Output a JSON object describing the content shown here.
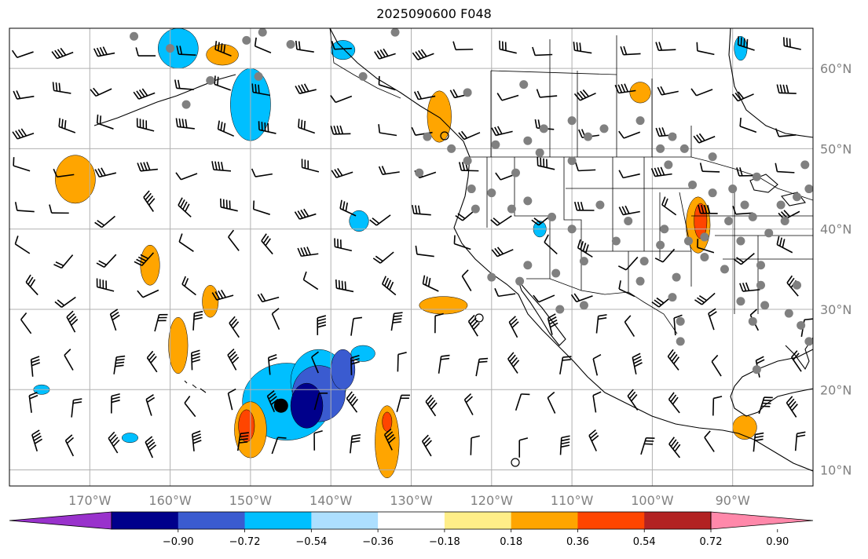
{
  "title": "2025090600 F048",
  "map": {
    "lon_range": [
      -180,
      -80
    ],
    "lat_range": [
      8,
      65
    ],
    "lat_ticks": [
      {
        "lat": 60,
        "label": "60°N"
      },
      {
        "lat": 50,
        "label": "50°N"
      },
      {
        "lat": 40,
        "label": "40°N"
      },
      {
        "lat": 30,
        "label": "30°N"
      },
      {
        "lat": 20,
        "label": "20°N"
      },
      {
        "lat": 10,
        "label": "10°N"
      }
    ],
    "lon_ticks": [
      {
        "lon": -170,
        "label": "170°W"
      },
      {
        "lon": -160,
        "label": "160°W"
      },
      {
        "lon": -150,
        "label": "150°W"
      },
      {
        "lon": -140,
        "label": "140°W"
      },
      {
        "lon": -130,
        "label": "130°W"
      },
      {
        "lon": -120,
        "label": "120°W"
      },
      {
        "lon": -110,
        "label": "110°W"
      },
      {
        "lon": -100,
        "label": "100°W"
      },
      {
        "lon": -90,
        "label": "90°W"
      }
    ],
    "grid_lons": [
      -180,
      -170,
      -160,
      -150,
      -140,
      -130,
      -120,
      -110,
      -100,
      -90,
      -80
    ],
    "grid_lats": [
      10,
      20,
      30,
      40,
      50,
      60
    ],
    "colors": {
      "grid": "#b0b0b0",
      "coast": "#000000",
      "station_dot": "#808080",
      "storm_dot": "#000000"
    }
  },
  "colorbar": {
    "colors": [
      "#9932CC",
      "#00008B",
      "#3A5BD0",
      "#00BFFF",
      "#ADDFFF",
      "#FFFFFF",
      "#FFEE88",
      "#FFA500",
      "#FF4500",
      "#B22222",
      "#FF88AA"
    ],
    "labels": [
      "−0.90",
      "−0.72",
      "−0.54",
      "−0.36",
      "−0.18",
      "0.18",
      "0.36",
      "0.54",
      "0.72",
      "0.90"
    ]
  },
  "anomaly_blobs": [
    {
      "lon": -145.5,
      "lat": 18.5,
      "rx": 5.5,
      "ry": 4.8,
      "level": "#00BFFF"
    },
    {
      "lon": -141.5,
      "lat": 21.0,
      "rx": 3.5,
      "ry": 4.0,
      "level": "#00BFFF"
    },
    {
      "lon": -141.5,
      "lat": 19.5,
      "rx": 3.3,
      "ry": 3.5,
      "level": "#3A5BD0"
    },
    {
      "lon": -143.0,
      "lat": 18.0,
      "rx": 2.0,
      "ry": 2.8,
      "level": "#00008B"
    },
    {
      "lon": -138.5,
      "lat": 22.5,
      "rx": 1.5,
      "ry": 2.5,
      "level": "#3A5BD0"
    },
    {
      "lon": -150.0,
      "lat": 55.5,
      "rx": 2.5,
      "ry": 4.5,
      "level": "#00BFFF"
    },
    {
      "lon": -159.0,
      "lat": 62.5,
      "rx": 2.5,
      "ry": 2.5,
      "level": "#00BFFF"
    },
    {
      "lon": -138.5,
      "lat": 62.3,
      "rx": 1.5,
      "ry": 1.2,
      "level": "#00BFFF"
    },
    {
      "lon": -150.0,
      "lat": 15.0,
      "rx": 2.0,
      "ry": 3.5,
      "level": "#FFA500"
    },
    {
      "lon": -150.5,
      "lat": 15.5,
      "rx": 1.0,
      "ry": 2.0,
      "level": "#FF4500"
    },
    {
      "lon": -133.0,
      "lat": 13.5,
      "rx": 1.5,
      "ry": 4.5,
      "level": "#FFA500"
    },
    {
      "lon": -133.0,
      "lat": 16.0,
      "rx": 0.6,
      "ry": 1.2,
      "level": "#FF4500"
    },
    {
      "lon": -171.8,
      "lat": 46.2,
      "rx": 2.5,
      "ry": 3.0,
      "level": "#FFA500"
    },
    {
      "lon": -159.0,
      "lat": 25.5,
      "rx": 1.2,
      "ry": 3.5,
      "level": "#FFA500"
    },
    {
      "lon": -162.5,
      "lat": 35.5,
      "rx": 1.2,
      "ry": 2.5,
      "level": "#FFA500"
    },
    {
      "lon": -155.0,
      "lat": 31.0,
      "rx": 1.0,
      "ry": 2.0,
      "level": "#FFA500"
    },
    {
      "lon": -153.5,
      "lat": 61.7,
      "rx": 2.0,
      "ry": 1.3,
      "level": "#FFA500"
    },
    {
      "lon": -126.5,
      "lat": 54.0,
      "rx": 1.5,
      "ry": 3.2,
      "level": "#FFA500"
    },
    {
      "lon": -126.0,
      "lat": 30.5,
      "rx": 3.0,
      "ry": 1.1,
      "level": "#FFA500"
    },
    {
      "lon": -94.3,
      "lat": 40.5,
      "rx": 1.5,
      "ry": 3.5,
      "level": "#FFA500"
    },
    {
      "lon": -94.0,
      "lat": 41.0,
      "rx": 0.8,
      "ry": 2.2,
      "level": "#FF4500"
    },
    {
      "lon": -101.5,
      "lat": 57.0,
      "rx": 1.3,
      "ry": 1.3,
      "level": "#FFA500"
    },
    {
      "lon": -88.5,
      "lat": 15.3,
      "rx": 1.5,
      "ry": 1.5,
      "level": "#FFA500"
    },
    {
      "lon": -136.0,
      "lat": 24.5,
      "rx": 1.5,
      "ry": 1.0,
      "level": "#00BFFF"
    },
    {
      "lon": -136.5,
      "lat": 41.0,
      "rx": 1.2,
      "ry": 1.3,
      "level": "#00BFFF"
    },
    {
      "lon": -114.0,
      "lat": 40.0,
      "rx": 0.8,
      "ry": 1.0,
      "level": "#00BFFF"
    },
    {
      "lon": -89.0,
      "lat": 62.5,
      "rx": 0.8,
      "ry": 1.5,
      "level": "#00BFFF"
    },
    {
      "lon": -176.0,
      "lat": 20.0,
      "rx": 1.0,
      "ry": 0.6,
      "level": "#00BFFF"
    },
    {
      "lon": -165.0,
      "lat": 14.0,
      "rx": 1.0,
      "ry": 0.6,
      "level": "#00BFFF"
    }
  ],
  "stations": [
    [
      -164.5,
      64
    ],
    [
      -160,
      62.5
    ],
    [
      -150.5,
      63.5
    ],
    [
      -148.5,
      64.5
    ],
    [
      -145,
      63
    ],
    [
      -149,
      59
    ],
    [
      -155,
      58.5
    ],
    [
      -158,
      55.5
    ],
    [
      -132,
      64.5
    ],
    [
      -136,
      59
    ],
    [
      -123,
      57
    ],
    [
      -116,
      58
    ],
    [
      -110,
      53.5
    ],
    [
      -113.5,
      52.5
    ],
    [
      -101.5,
      53.5
    ],
    [
      -106,
      52.5
    ],
    [
      -108,
      51.5
    ],
    [
      -115.5,
      51
    ],
    [
      -114,
      49.5
    ],
    [
      -110,
      48.5
    ],
    [
      -98,
      48
    ],
    [
      -99,
      50
    ],
    [
      -96,
      50
    ],
    [
      -92.5,
      49
    ],
    [
      -97.5,
      51.5
    ],
    [
      -90,
      45
    ],
    [
      -93.5,
      39
    ],
    [
      -98.5,
      40
    ],
    [
      -95.5,
      38.5
    ],
    [
      -103,
      41
    ],
    [
      -110,
      40
    ],
    [
      -112.5,
      41.5
    ],
    [
      -117.5,
      42.5
    ],
    [
      -122,
      42.5
    ],
    [
      -120,
      44.5
    ],
    [
      -117,
      47
    ],
    [
      -122.5,
      45
    ],
    [
      -123,
      48.5
    ],
    [
      -125,
      50
    ],
    [
      -128,
      51.5
    ],
    [
      -119.5,
      50.5
    ],
    [
      -115.5,
      43.5
    ],
    [
      -106.5,
      43
    ],
    [
      -99,
      38
    ],
    [
      -104.5,
      38.5
    ],
    [
      -108.5,
      36
    ],
    [
      -112,
      34.5
    ],
    [
      -116.5,
      33.5
    ],
    [
      -115.5,
      35.5
    ],
    [
      -111.5,
      30
    ],
    [
      -108.5,
      30.5
    ],
    [
      -101.5,
      33.5
    ],
    [
      -101,
      36
    ],
    [
      -97,
      34
    ],
    [
      -97.5,
      31.5
    ],
    [
      -96.5,
      28.5
    ],
    [
      -96.5,
      26
    ],
    [
      -93.5,
      36.5
    ],
    [
      -91,
      35
    ],
    [
      -86.5,
      35.5
    ],
    [
      -86.5,
      33
    ],
    [
      -86,
      30.5
    ],
    [
      -83,
      29.5
    ],
    [
      -82,
      33
    ],
    [
      -81.5,
      28
    ],
    [
      -80.5,
      26
    ],
    [
      -85.5,
      39.5
    ],
    [
      -87.5,
      41.5
    ],
    [
      -88.5,
      43
    ],
    [
      -84,
      43
    ],
    [
      -82,
      44
    ],
    [
      -87,
      46.5
    ],
    [
      -92.5,
      44.5
    ],
    [
      -95,
      45.5
    ],
    [
      -80.5,
      45
    ],
    [
      -81,
      48
    ],
    [
      -83.5,
      41
    ],
    [
      -89,
      38.5
    ],
    [
      -90.5,
      41
    ],
    [
      -87,
      22.5
    ],
    [
      -87.5,
      28.5
    ],
    [
      -89,
      31
    ],
    [
      -129,
      47
    ],
    [
      -120,
      34
    ]
  ],
  "storm": {
    "lon": -146.2,
    "lat": 18.0
  }
}
